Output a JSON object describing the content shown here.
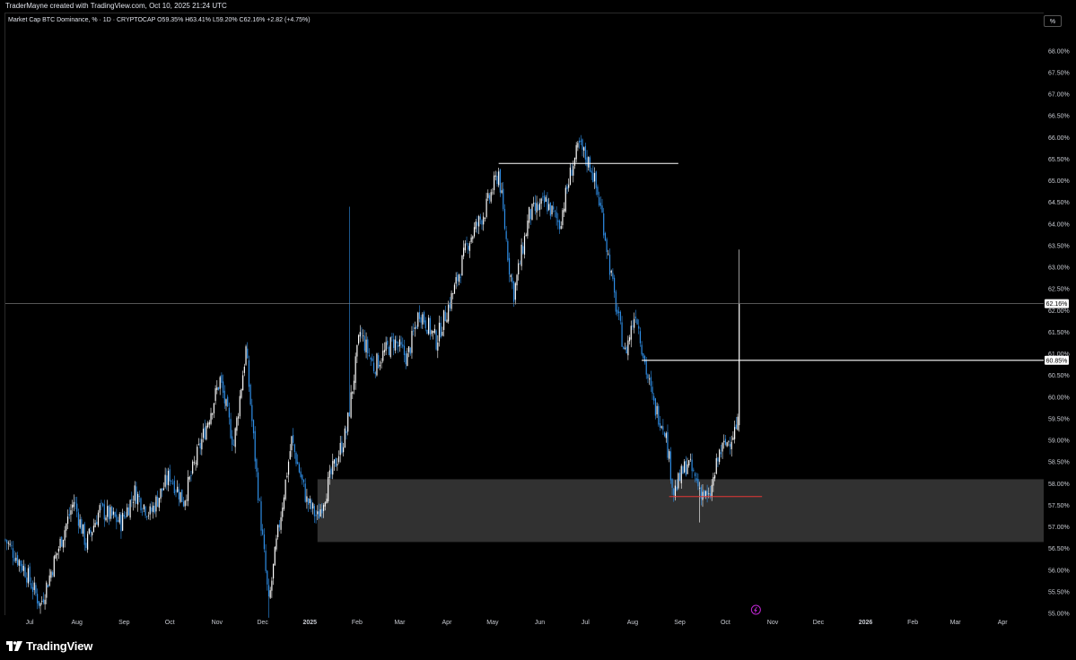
{
  "header": {
    "creator_text": "TraderMayne created with TradingView.com, Oct 10, 2025 21:24 UTC",
    "legend_text": "Market Cap BTC Dominance, % · 1D · CRYPTOCAP  O59.35%  H63.41%  L59.20%  C62.16%  +2.82 (+4.75%)",
    "scale_button": "%"
  },
  "footer": {
    "brand": "TradingView",
    "logo_icon": "tradingview-logo-icon"
  },
  "colors": {
    "background": "#000000",
    "up_candle": "#ffffff",
    "down_candle": "#2f8fe8",
    "zone_fill": "#3a3a3a",
    "level_line": "#ffffff",
    "support_line": "#e53935",
    "axis_text": "#c8cbd2",
    "current_price_line": "#8a8a8a"
  },
  "chart_data": {
    "type": "candlestick",
    "title": "Market Cap BTC Dominance, %",
    "timeframe": "1D",
    "source": "CRYPTOCAP",
    "last_ohlc": {
      "open": 59.35,
      "high": 63.41,
      "low": 59.2,
      "close": 62.16,
      "change": 2.82,
      "change_pct": 4.75
    },
    "y_unit": "%",
    "ylim": [
      54.9,
      68.9
    ],
    "y_ticks": [
      55.0,
      55.5,
      56.0,
      56.5,
      57.0,
      57.5,
      58.0,
      58.5,
      59.0,
      59.5,
      60.0,
      60.5,
      61.0,
      61.5,
      62.0,
      62.5,
      63.0,
      63.5,
      64.0,
      64.5,
      65.0,
      65.5,
      66.0,
      66.5,
      67.0,
      67.5,
      68.0
    ],
    "y_tick_labels": [
      "55.00%",
      "55.50%",
      "56.00%",
      "56.50%",
      "57.00%",
      "57.50%",
      "58.00%",
      "58.50%",
      "59.00%",
      "59.50%",
      "60.00%",
      "60.50%",
      "61.00%",
      "61.50%",
      "62.00%",
      "62.50%",
      "63.00%",
      "63.50%",
      "64.00%",
      "64.50%",
      "65.00%",
      "65.50%",
      "66.00%",
      "66.50%",
      "67.00%",
      "67.50%",
      "68.00%"
    ],
    "x_start_date": "2024-06-15",
    "x_end_date": "2026-04-28",
    "x_ticks": [
      {
        "date": "2024-07-01",
        "label": "Jul"
      },
      {
        "date": "2024-08-01",
        "label": "Aug"
      },
      {
        "date": "2024-09-01",
        "label": "Sep"
      },
      {
        "date": "2024-10-01",
        "label": "Oct"
      },
      {
        "date": "2024-11-01",
        "label": "Nov"
      },
      {
        "date": "2024-12-01",
        "label": "Dec"
      },
      {
        "date": "2025-01-01",
        "label": "2025"
      },
      {
        "date": "2025-02-01",
        "label": "Feb"
      },
      {
        "date": "2025-03-01",
        "label": "Mar"
      },
      {
        "date": "2025-04-01",
        "label": "Apr"
      },
      {
        "date": "2025-05-01",
        "label": "May"
      },
      {
        "date": "2025-06-01",
        "label": "Jun"
      },
      {
        "date": "2025-07-01",
        "label": "Jul"
      },
      {
        "date": "2025-08-01",
        "label": "Aug"
      },
      {
        "date": "2025-09-01",
        "label": "Sep"
      },
      {
        "date": "2025-10-01",
        "label": "Oct"
      },
      {
        "date": "2025-11-01",
        "label": "Nov"
      },
      {
        "date": "2025-12-01",
        "label": "Dec"
      },
      {
        "date": "2026-01-01",
        "label": "2026"
      },
      {
        "date": "2026-02-01",
        "label": "Feb"
      },
      {
        "date": "2026-03-01",
        "label": "Mar"
      },
      {
        "date": "2026-04-01",
        "label": "Apr"
      }
    ],
    "close_path": [
      {
        "date": "2024-06-15",
        "value": 56.7
      },
      {
        "date": "2024-06-28",
        "value": 56.0
      },
      {
        "date": "2024-07-08",
        "value": 55.2
      },
      {
        "date": "2024-07-18",
        "value": 56.3
      },
      {
        "date": "2024-07-30",
        "value": 57.6
      },
      {
        "date": "2024-08-07",
        "value": 56.6
      },
      {
        "date": "2024-08-16",
        "value": 57.4
      },
      {
        "date": "2024-08-30",
        "value": 57.1
      },
      {
        "date": "2024-09-08",
        "value": 57.8
      },
      {
        "date": "2024-09-18",
        "value": 57.3
      },
      {
        "date": "2024-10-01",
        "value": 58.2
      },
      {
        "date": "2024-10-10",
        "value": 57.6
      },
      {
        "date": "2024-10-22",
        "value": 59.0
      },
      {
        "date": "2024-11-03",
        "value": 60.4
      },
      {
        "date": "2024-11-12",
        "value": 58.9
      },
      {
        "date": "2024-11-20",
        "value": 61.1
      },
      {
        "date": "2024-11-27",
        "value": 58.2
      },
      {
        "date": "2024-12-05",
        "value": 55.2
      },
      {
        "date": "2024-12-10",
        "value": 56.6
      },
      {
        "date": "2024-12-20",
        "value": 59.0
      },
      {
        "date": "2024-12-30",
        "value": 57.6
      },
      {
        "date": "2025-01-06",
        "value": 57.2
      },
      {
        "date": "2025-01-15",
        "value": 58.2
      },
      {
        "date": "2025-01-25",
        "value": 59.2
      },
      {
        "date": "2025-02-03",
        "value": 61.5
      },
      {
        "date": "2025-02-12",
        "value": 60.7
      },
      {
        "date": "2025-02-25",
        "value": 61.3
      },
      {
        "date": "2025-03-06",
        "value": 60.9
      },
      {
        "date": "2025-03-14",
        "value": 62.0
      },
      {
        "date": "2025-03-25",
        "value": 61.3
      },
      {
        "date": "2025-04-06",
        "value": 62.5
      },
      {
        "date": "2025-04-15",
        "value": 63.6
      },
      {
        "date": "2025-04-26",
        "value": 64.3
      },
      {
        "date": "2025-05-05",
        "value": 65.2
      },
      {
        "date": "2025-05-12",
        "value": 63.0
      },
      {
        "date": "2025-05-15",
        "value": 62.4
      },
      {
        "date": "2025-05-25",
        "value": 64.2
      },
      {
        "date": "2025-06-05",
        "value": 64.5
      },
      {
        "date": "2025-06-14",
        "value": 64.0
      },
      {
        "date": "2025-06-22",
        "value": 65.3
      },
      {
        "date": "2025-06-27",
        "value": 65.8
      },
      {
        "date": "2025-07-05",
        "value": 65.3
      },
      {
        "date": "2025-07-12",
        "value": 64.2
      },
      {
        "date": "2025-07-20",
        "value": 62.3
      },
      {
        "date": "2025-07-27",
        "value": 61.0
      },
      {
        "date": "2025-08-03",
        "value": 62.0
      },
      {
        "date": "2025-08-10",
        "value": 60.6
      },
      {
        "date": "2025-08-15",
        "value": 59.8
      },
      {
        "date": "2025-08-22",
        "value": 59.3
      },
      {
        "date": "2025-08-28",
        "value": 57.8
      },
      {
        "date": "2025-09-06",
        "value": 58.5
      },
      {
        "date": "2025-09-14",
        "value": 57.9
      },
      {
        "date": "2025-09-20",
        "value": 57.6
      },
      {
        "date": "2025-09-27",
        "value": 58.7
      },
      {
        "date": "2025-10-03",
        "value": 59.0
      },
      {
        "date": "2025-10-09",
        "value": 59.35
      },
      {
        "date": "2025-10-10",
        "value": 62.16
      }
    ],
    "notable_wicks": [
      {
        "date": "2024-12-05",
        "low": 54.9
      },
      {
        "date": "2025-01-27",
        "high": 64.4
      },
      {
        "date": "2025-06-27",
        "high": 66.0
      },
      {
        "date": "2025-09-14",
        "low": 57.1
      },
      {
        "date": "2025-10-10",
        "high": 63.41,
        "low": 59.2
      }
    ],
    "annotations": [
      {
        "kind": "horizontal_level",
        "date_start": "2025-05-05",
        "date_end": "2025-08-31",
        "value": 65.4,
        "color": "#ffffff"
      },
      {
        "kind": "horizontal_level",
        "date_start": "2025-08-07",
        "date_end": "2026-04-28",
        "value": 60.85,
        "label": "60.85%",
        "color": "#ffffff"
      },
      {
        "kind": "support_line",
        "date_start": "2025-08-25",
        "date_end": "2025-10-25",
        "value": 57.7,
        "color": "#e53935"
      },
      {
        "kind": "zone",
        "date_start": "2025-01-06",
        "date_end": "2026-04-28",
        "from": 56.65,
        "to": 58.1,
        "color": "#3a3a3a"
      }
    ],
    "current_price": {
      "value": 62.16,
      "label": "62.16%"
    }
  }
}
